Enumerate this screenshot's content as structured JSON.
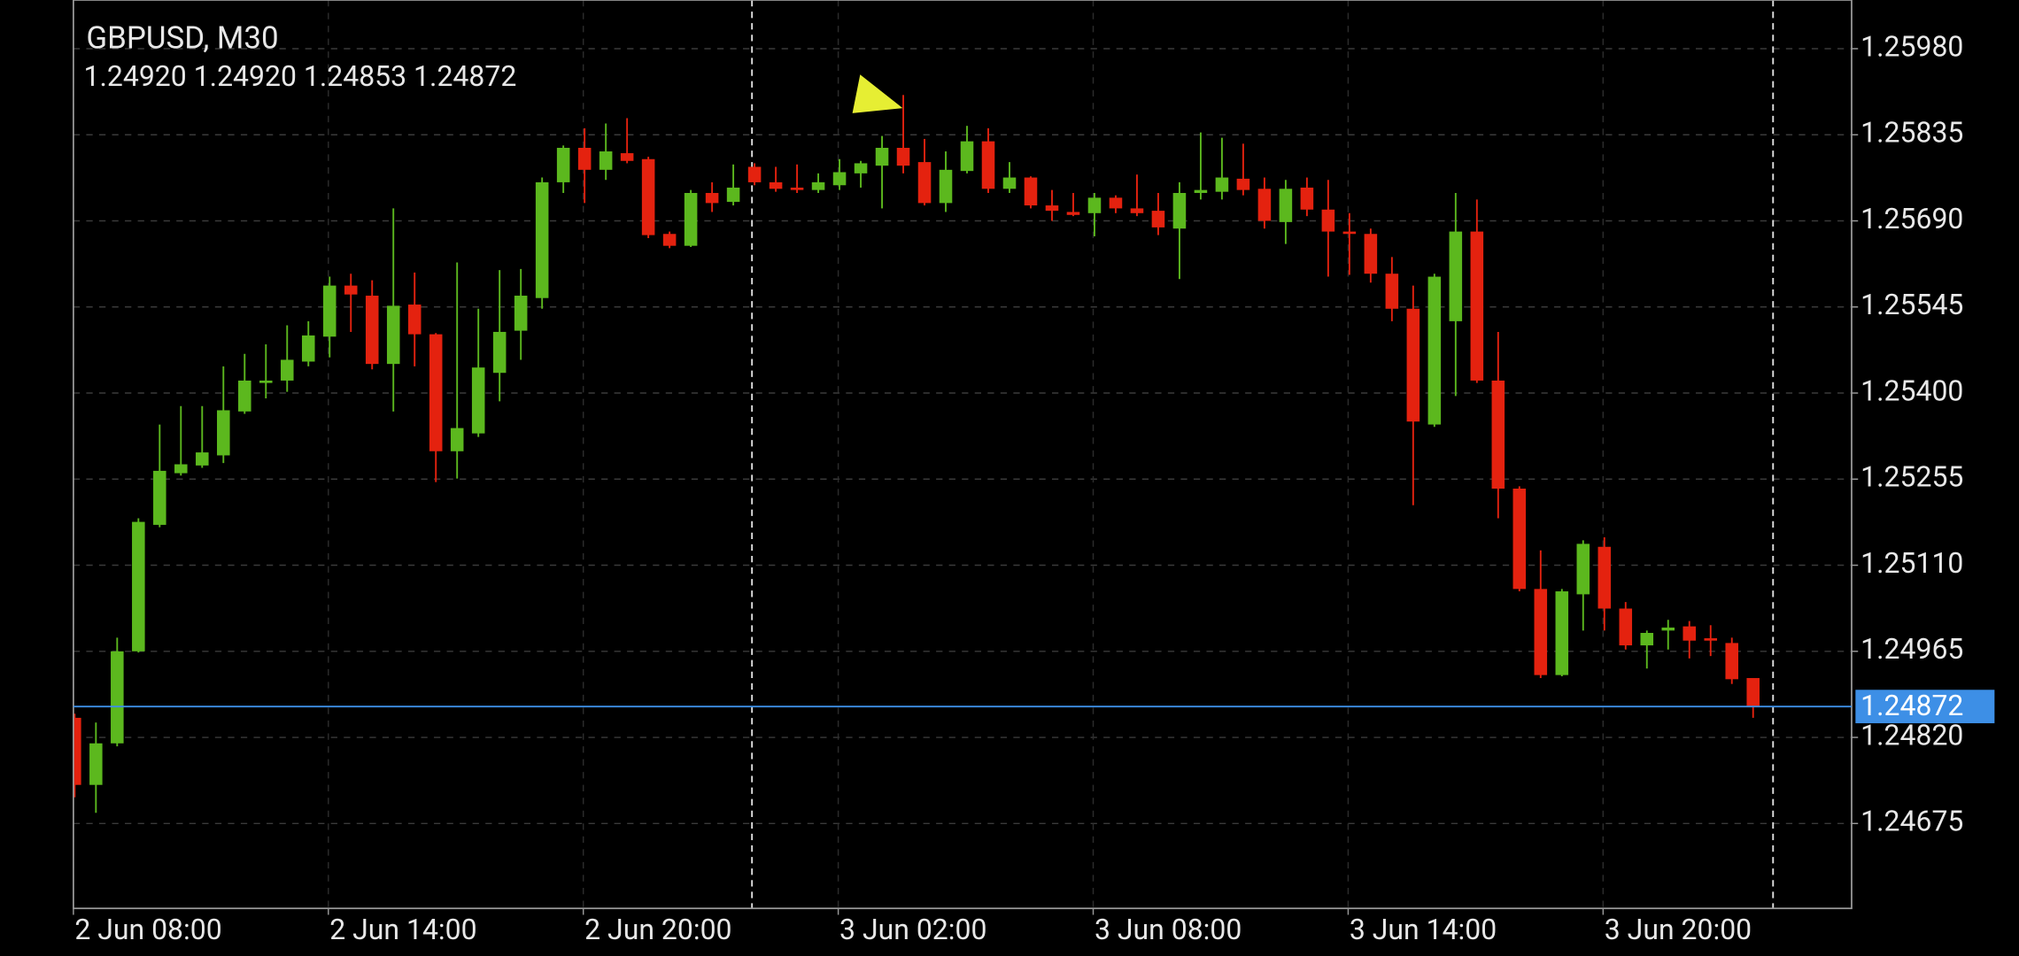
{
  "chart_data": {
    "type": "candlestick",
    "title": "GBPUSD, M30",
    "ohlc_text": "1.24920 1.24920 1.24853 1.24872",
    "categories": [
      "2 Jun 08:00",
      null,
      null,
      null,
      null,
      null,
      null,
      null,
      null,
      null,
      null,
      null,
      "2 Jun 14:00",
      null,
      null,
      null,
      null,
      null,
      null,
      null,
      null,
      null,
      null,
      null,
      "2 Jun 20:00",
      null,
      null,
      null,
      null,
      null,
      null,
      null,
      null,
      null,
      null,
      null,
      "3 Jun 02:00",
      null,
      null,
      null,
      null,
      null,
      null,
      null,
      null,
      null,
      null,
      null,
      "3 Jun 08:00",
      null,
      null,
      null,
      null,
      null,
      null,
      null,
      null,
      null,
      null,
      null,
      "3 Jun 14:00",
      null,
      null,
      null,
      null,
      null,
      null,
      null,
      null,
      null,
      null,
      null,
      "3 Jun 20:00",
      null,
      null,
      null,
      null,
      null,
      null,
      null
    ],
    "open": [
      1.24853,
      1.2474,
      1.2481,
      1.24965,
      1.25178,
      1.25265,
      1.25278,
      1.25295,
      1.25369,
      1.25417,
      1.25421,
      1.25453,
      1.25495,
      1.25581,
      1.25564,
      1.25449,
      1.25549,
      1.25499,
      1.25302,
      1.25332,
      1.25434,
      1.25505,
      1.2556,
      1.25755,
      1.25813,
      1.25776,
      1.25804,
      1.25794,
      1.25668,
      1.25648,
      1.25737,
      1.25722,
      1.25781,
      1.25755,
      1.25746,
      1.25742,
      1.2575,
      1.2577,
      1.25783,
      1.25813,
      1.25789,
      1.2572,
      1.25774,
      1.25824,
      1.25744,
      1.25763,
      1.25716,
      1.25705,
      1.25703,
      1.25729,
      1.25711,
      1.25707,
      1.25677,
      1.25737,
      1.25739,
      1.25761,
      1.25744,
      1.25688,
      1.25746,
      1.25709,
      1.25672,
      1.25668,
      1.25601,
      1.25542,
      1.25347,
      1.25521,
      1.25672,
      1.25421,
      1.25239,
      1.2507,
      1.24925,
      1.25061,
      1.25141,
      1.25037,
      1.24975,
      1.25,
      1.25007,
      1.24987,
      1.24979,
      1.2492
    ],
    "high": [
      1.2486,
      1.24845,
      1.24988,
      1.25189,
      1.25347,
      1.25378,
      1.25378,
      1.25445,
      1.25466,
      1.25482,
      1.25514,
      1.25521,
      1.25596,
      1.25601,
      1.2559,
      1.25711,
      1.25603,
      1.25501,
      1.2562,
      1.25542,
      1.25607,
      1.25609,
      1.25763,
      1.25817,
      1.25846,
      1.25854,
      1.25863,
      1.25798,
      1.25672,
      1.25742,
      1.25755,
      1.25785,
      1.25787,
      1.25781,
      1.25785,
      1.2577,
      1.25794,
      1.25791,
      1.25833,
      1.25902,
      1.25828,
      1.25807,
      1.2585,
      1.25846,
      1.25789,
      1.25765,
      1.25742,
      1.25737,
      1.25737,
      1.25733,
      1.25768,
      1.25737,
      1.25755,
      1.25839,
      1.2583,
      1.2582,
      1.25763,
      1.25759,
      1.25763,
      1.25759,
      1.25703,
      1.25677,
      1.25629,
      1.25581,
      1.25601,
      1.25737,
      1.25726,
      1.25503,
      1.25243,
      1.25135,
      1.2507,
      1.25152,
      1.25157,
      1.25048,
      1.25,
      1.25018,
      1.25016,
      1.25009,
      1.24988,
      1.2492
    ],
    "low": [
      1.24719,
      1.24693,
      1.24805,
      1.24963,
      1.25174,
      1.25261,
      1.25274,
      1.25282,
      1.25365,
      1.25391,
      1.25402,
      1.25445,
      1.2546,
      1.25503,
      1.2544,
      1.25369,
      1.25445,
      1.2525,
      1.25256,
      1.25326,
      1.25386,
      1.25456,
      1.25542,
      1.25737,
      1.2572,
      1.25759,
      1.25787,
      1.25661,
      1.25644,
      1.25646,
      1.25705,
      1.25716,
      1.2575,
      1.25739,
      1.25737,
      1.25737,
      1.25742,
      1.25746,
      1.25711,
      1.2577,
      1.25716,
      1.25705,
      1.2577,
      1.25737,
      1.25737,
      1.25711,
      1.2569,
      1.25698,
      1.25664,
      1.25703,
      1.25698,
      1.25666,
      1.25592,
      1.25726,
      1.25726,
      1.25733,
      1.25677,
      1.25651,
      1.25698,
      1.25596,
      1.25599,
      1.25586,
      1.25521,
      1.25211,
      1.25343,
      1.25395,
      1.25417,
      1.25189,
      1.25066,
      1.2492,
      1.24923,
      1.25,
      1.25,
      1.24968,
      1.24936,
      1.24968,
      1.24953,
      1.24957,
      1.2491,
      1.24853
    ],
    "close": [
      1.2474,
      1.2481,
      1.24965,
      1.25183,
      1.25269,
      1.2528,
      1.253,
      1.25371,
      1.25421,
      1.25421,
      1.25456,
      1.25497,
      1.25581,
      1.25566,
      1.25449,
      1.25547,
      1.25499,
      1.25302,
      1.25341,
      1.25443,
      1.25503,
      1.25564,
      1.25755,
      1.25813,
      1.25776,
      1.25807,
      1.25791,
      1.25666,
      1.25648,
      1.25737,
      1.2572,
      1.25746,
      1.25755,
      1.25744,
      1.25742,
      1.25755,
      1.25772,
      1.25787,
      1.25813,
      1.25783,
      1.2572,
      1.25776,
      1.25824,
      1.25744,
      1.25763,
      1.25716,
      1.25707,
      1.257,
      1.25729,
      1.25711,
      1.25703,
      1.25679,
      1.25737,
      1.25742,
      1.25763,
      1.25742,
      1.2569,
      1.25744,
      1.25709,
      1.25672,
      1.25668,
      1.25601,
      1.25542,
      1.25352,
      1.25596,
      1.25672,
      1.25421,
      1.25239,
      1.2507,
      1.24925,
      1.25066,
      1.25146,
      1.25037,
      1.24975,
      1.24996,
      1.25005,
      1.24983,
      1.24983,
      1.24918,
      1.24872
    ],
    "up_color": "#5cb81e",
    "down_color": "#e4220f",
    "bid": 1.24872,
    "bid_color": "#3d8fe6",
    "ylim": [
      1.24532,
      1.26062
    ],
    "yticks": [
      {
        "value": 1.2598,
        "label": "1.25980"
      },
      1.25835,
      {
        "value": 1.2569,
        "label": "1.25690"
      },
      1.25545,
      {
        "value": 1.254,
        "label": "1.25400"
      },
      1.25255,
      {
        "value": 1.2511,
        "label": "1.25110"
      },
      1.24965,
      {
        "value": 1.2482,
        "label": "1.24820"
      },
      1.24675
    ],
    "grid": true
  }
}
